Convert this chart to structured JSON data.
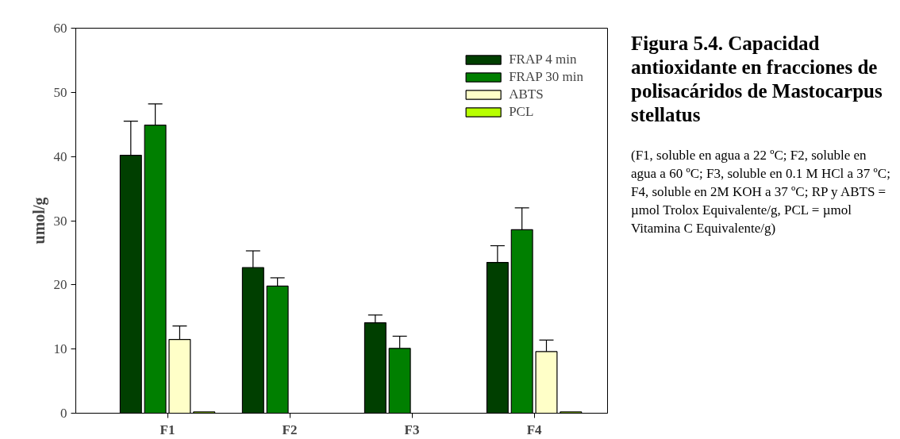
{
  "chart_data": {
    "type": "bar",
    "title": "Figura 5.4. Capacidad antioxidante en fracciones de polisacáridos de Mastocarpus stellatus",
    "annotations": [
      "(F1, soluble en agua a 22 ºC; F2, soluble en agua a 60 ºC; F3, soluble en 0.1 M HCl a 37 ºC; F4, soluble en 2M KOH a 37 ºC; RP y ABTS = µmol Trolox Equivalente/g, PCL = µmol Vitamina C Equivalente/g)"
    ],
    "ylabel": "umol/g",
    "categories": [
      "F1",
      "F2",
      "F3",
      "F4"
    ],
    "series": [
      {
        "name": "FRAP 4 min",
        "color": "#003f00",
        "values": [
          40.2,
          22.7,
          14.1,
          23.5
        ],
        "errors": [
          5.3,
          2.6,
          1.2,
          2.6
        ]
      },
      {
        "name": "FRAP 30 min",
        "color": "#007f00",
        "values": [
          44.9,
          19.8,
          10.1,
          28.6
        ],
        "errors": [
          3.3,
          1.3,
          1.9,
          3.4
        ]
      },
      {
        "name": "ABTS",
        "color": "#ffffc8",
        "values": [
          11.5,
          null,
          null,
          9.6
        ],
        "errors": [
          2.1,
          null,
          null,
          1.8
        ]
      },
      {
        "name": "PCL",
        "color": "#b8ff00",
        "values": [
          0.2,
          null,
          null,
          0.2
        ]
      }
    ],
    "ylim": [
      0,
      60
    ],
    "yticks": [
      0,
      10,
      20,
      30,
      40,
      50,
      60
    ],
    "grid": false,
    "legend": "top right"
  }
}
